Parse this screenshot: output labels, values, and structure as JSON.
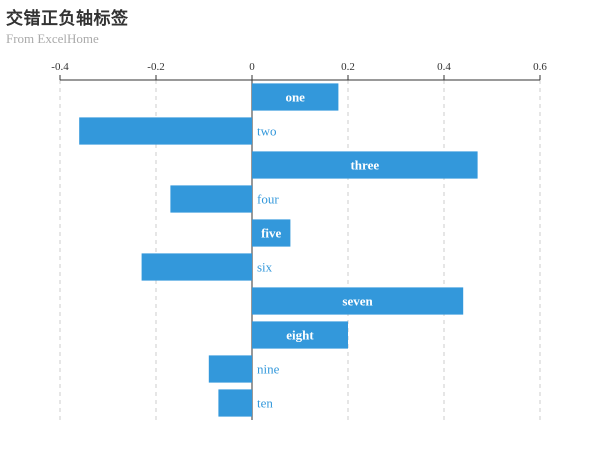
{
  "title": "交错正负轴标签",
  "subtitle": "From ExcelHome",
  "chart_data": {
    "type": "bar",
    "orientation": "horizontal",
    "title": "交错正负轴标签",
    "subtitle": "From ExcelHome",
    "categories": [
      "one",
      "two",
      "three",
      "four",
      "five",
      "six",
      "seven",
      "eight",
      "nine",
      "ten"
    ],
    "values": [
      0.18,
      -0.36,
      0.47,
      -0.17,
      0.08,
      -0.23,
      0.44,
      0.2,
      -0.09,
      -0.07
    ],
    "xlim": [
      -0.4,
      0.6
    ],
    "xticks": [
      "-0.4",
      "-0.2",
      "0",
      "0.2",
      "0.4",
      "0.6"
    ],
    "xtick_values": [
      -0.4,
      -0.2,
      0,
      0.2,
      0.4,
      0.6
    ],
    "x_axis_position": "top",
    "grid": "vertical-dashed",
    "bar_color": "#3398db",
    "positive_label_color": "#ffffff",
    "negative_label_color": "#3398db"
  }
}
